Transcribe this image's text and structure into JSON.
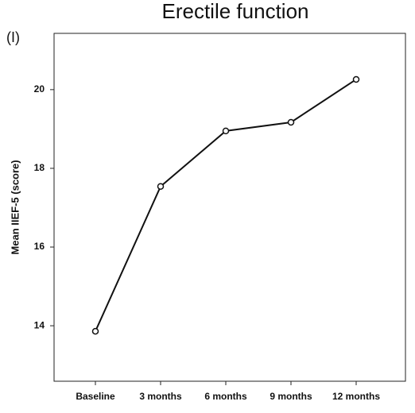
{
  "chart_data": {
    "type": "line",
    "title": "Erectile function",
    "panel_label": "(I)",
    "y_label": "Mean IIEF-5 (score)",
    "categories": [
      "Baseline",
      "3 months",
      "6 months",
      "9 months",
      "12 months"
    ],
    "values": [
      13.86,
      17.54,
      18.95,
      19.17,
      20.26
    ],
    "color": "#111111",
    "ylim": [
      12.59,
      21.43
    ],
    "yticks": [
      14,
      16,
      18,
      20
    ],
    "grid": false
  }
}
